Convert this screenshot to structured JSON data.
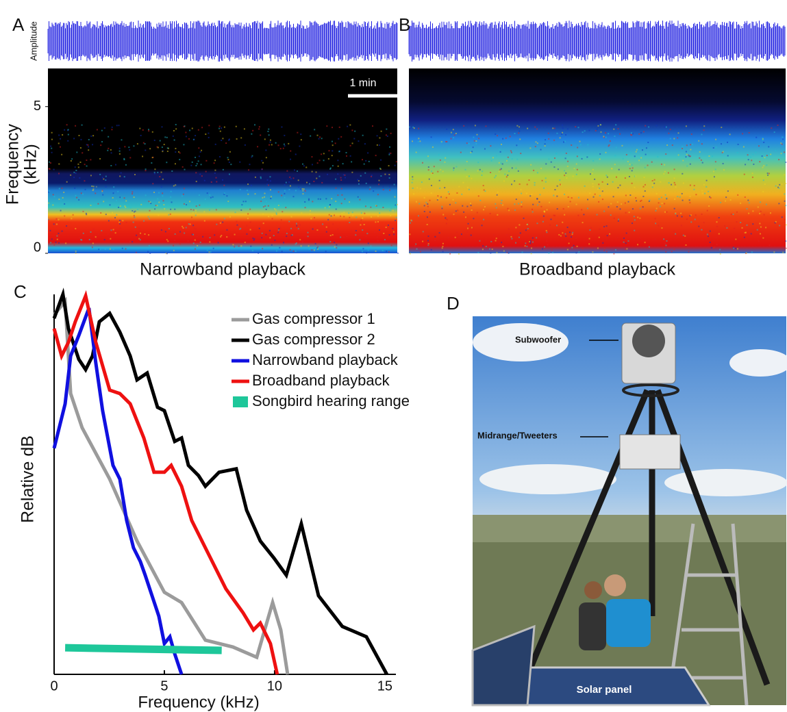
{
  "chart_data": [
    {
      "type": "spectrogram",
      "panel_label": "A",
      "amplitude_label": "Amplitude",
      "ylabel": [
        "Frequency",
        "(kHz)"
      ],
      "scale_bar": "1 min",
      "xlabel": "Narrowband playback",
      "ylim": [
        0,
        6.3
      ],
      "yticks": [
        0,
        5
      ],
      "variant": "narrowband"
    },
    {
      "type": "spectrogram",
      "panel_label": "B",
      "xlabel": "Broadband playback",
      "ylim": [
        0,
        6.3
      ],
      "variant": "broadband"
    },
    {
      "type": "line",
      "panel_label": "C",
      "xlabel": "Frequency (kHz)",
      "ylabel": "Relative dB",
      "xlim": [
        0,
        15.5
      ],
      "xticks": [
        0,
        5,
        10,
        15
      ],
      "ylim": [
        0,
        100
      ],
      "series": [
        {
          "name": "Gas compressor 1",
          "color": "#9b9b9b",
          "x": [
            0,
            0.5,
            0.75,
            1.27,
            2.52,
            3.76,
            5.0,
            5.78,
            6.86,
            8.11,
            9.19,
            9.91,
            10.28,
            10.59
          ],
          "values": [
            94.6,
            98.2,
            73.9,
            64.9,
            51.4,
            35.1,
            21.6,
            18.9,
            9.0,
            7.2,
            4.5,
            18.9,
            11.7,
            0
          ]
        },
        {
          "name": "Gas compressor 2",
          "color": "#000000",
          "x": [
            0,
            0.4,
            0.65,
            1.12,
            1.43,
            1.74,
            2.05,
            2.52,
            2.98,
            3.45,
            3.76,
            4.22,
            4.69,
            5.0,
            5.47,
            5.78,
            6.09,
            6.55,
            6.86,
            7.48,
            8.26,
            8.73,
            9.35,
            9.97,
            10.53,
            11.21,
            11.99,
            13.07,
            14.16,
            15.09
          ],
          "values": [
            93.7,
            100,
            91.0,
            82.9,
            80.2,
            83.8,
            92.8,
            95.0,
            90.1,
            83.8,
            77.5,
            79.3,
            70.3,
            69.4,
            61.3,
            62.2,
            55.0,
            52.3,
            49.5,
            53.2,
            54.1,
            43.2,
            35.1,
            30.6,
            26.1,
            39.6,
            20.7,
            12.6,
            9.9,
            0
          ]
        },
        {
          "name": "Narrowband playback",
          "color": "#1010e0",
          "x": [
            0,
            0.5,
            0.75,
            1.12,
            1.58,
            1.89,
            2.2,
            2.67,
            2.98,
            3.29,
            3.6,
            3.91,
            4.13,
            4.44,
            4.75,
            5.0,
            5.25,
            5.47,
            5.78
          ],
          "values": [
            59.5,
            71.2,
            83.8,
            89.2,
            96.4,
            82.0,
            69.4,
            55.0,
            51.4,
            40.5,
            33.3,
            29.7,
            26.1,
            20.7,
            15.3,
            8.1,
            9.9,
            5.4,
            0
          ]
        },
        {
          "name": "Broadband playback",
          "color": "#ee1111",
          "x": [
            0,
            0.34,
            0.65,
            0.96,
            1.43,
            1.89,
            2.52,
            2.98,
            3.45,
            4.07,
            4.53,
            5.0,
            5.31,
            5.78,
            6.24,
            6.86,
            7.79,
            8.57,
            9.04,
            9.35,
            9.81,
            10.12
          ],
          "values": [
            91.0,
            83.8,
            87.4,
            92.8,
            99.6,
            87.4,
            74.8,
            73.9,
            71.2,
            62.2,
            53.2,
            53.2,
            55.0,
            49.5,
            40.5,
            33.3,
            22.5,
            16.2,
            11.7,
            13.5,
            8.1,
            0
          ]
        },
        {
          "name": "Songbird hearing range",
          "color": "#1ec79a",
          "x": [
            0.5,
            7.6
          ],
          "values": [
            7.0,
            6.3
          ],
          "width": 11
        }
      ]
    }
  ],
  "photo": {
    "panel_label": "D",
    "labels": [
      "Subwoofer",
      "Midrange/Tweeters",
      "Solar panel"
    ]
  }
}
